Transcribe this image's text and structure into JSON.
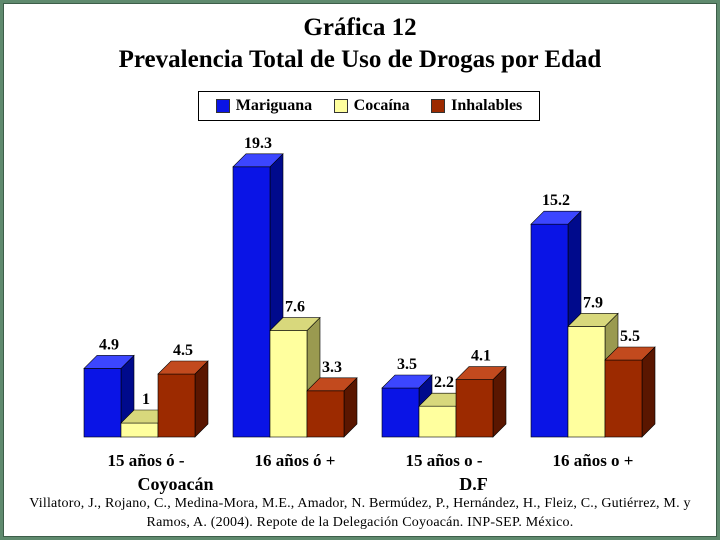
{
  "slide": {
    "citation": "Villatoro, J., Rojano, C., Medina-Mora, M.E., Amador, N. Bermúdez, P., Hernández, H., Fleiz, C., Gutiérrez, M. y Ramos, A. (2004). Repote de la Delegación Coyoacán. INP-SEP. México."
  },
  "chart_data": {
    "type": "bar",
    "title": "Gráfica 12",
    "subtitle": "Prevalencia Total de Uso de Drogas por Edad",
    "categories": [
      "15 años ó -",
      "16 años ó +",
      "15 años o -",
      "16 años o +"
    ],
    "groups": [
      {
        "label": "Coyoacán",
        "categories": [
          0,
          1
        ]
      },
      {
        "label": "D.F",
        "categories": [
          2,
          3
        ]
      }
    ],
    "series": [
      {
        "name": "Mariguana",
        "values": [
          4.9,
          19.3,
          3.5,
          15.2
        ],
        "color": "#0a14e6",
        "side": "#000a8c",
        "top": "#3c46ff"
      },
      {
        "name": "Cocaína",
        "values": [
          1,
          7.6,
          2.2,
          7.9
        ],
        "color": "#ffff9e",
        "side": "#9a9a50",
        "top": "#d8d87c"
      },
      {
        "name": "Inhalables",
        "values": [
          4.5,
          3.3,
          4.1,
          5.5
        ],
        "color": "#9c2a00",
        "side": "#5a1600",
        "top": "#c24a1e"
      }
    ],
    "ylim": [
      0,
      20
    ],
    "grid": false,
    "legend": "top-center",
    "three_d": true
  }
}
